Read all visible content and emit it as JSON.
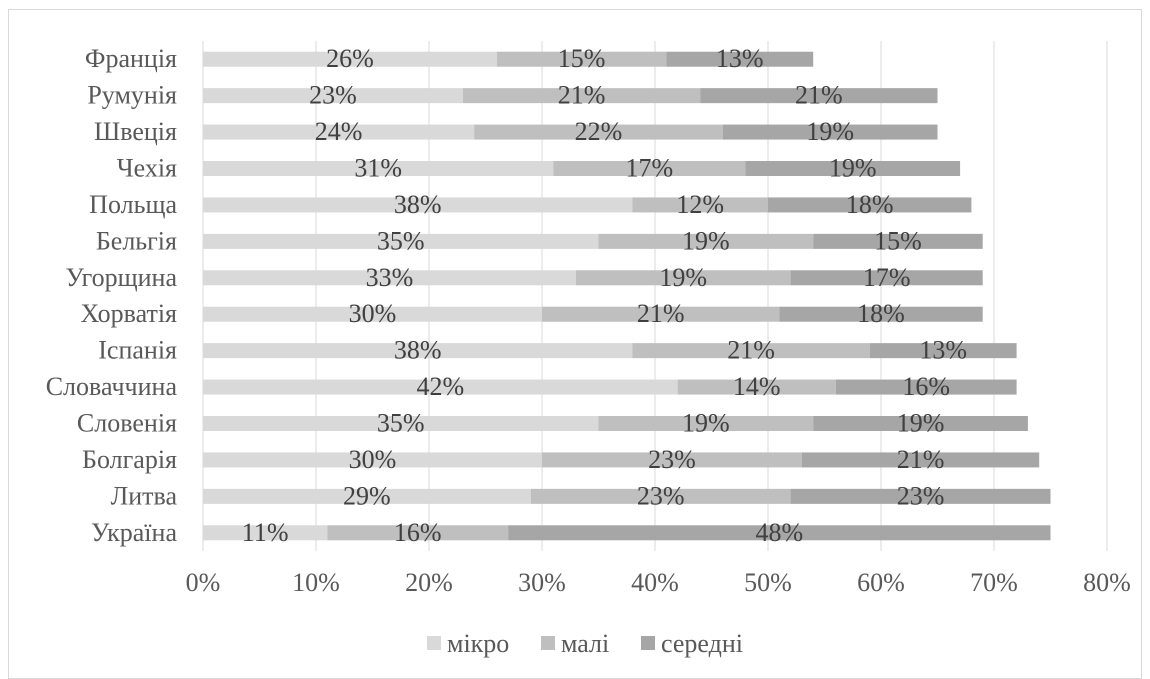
{
  "chart_data": {
    "type": "bar",
    "orientation": "horizontal",
    "stacked": true,
    "categories": [
      "Франція",
      "Румунія",
      "Швеція",
      "Чехія",
      "Польща",
      "Бельгія",
      "Угорщина",
      "Хорватія",
      "Іспанія",
      "Словаччина",
      "Словенія",
      "Болгарія",
      "Литва",
      "Україна"
    ],
    "series": [
      {
        "name": "мікро",
        "color": "#d9d9d9",
        "values": [
          26,
          23,
          24,
          31,
          38,
          35,
          33,
          30,
          38,
          42,
          35,
          30,
          29,
          11
        ]
      },
      {
        "name": "малі",
        "color": "#bfbfbf",
        "values": [
          15,
          21,
          22,
          17,
          12,
          19,
          19,
          21,
          21,
          14,
          19,
          23,
          23,
          16
        ]
      },
      {
        "name": "середні",
        "color": "#a6a6a6",
        "values": [
          13,
          21,
          19,
          19,
          18,
          15,
          17,
          18,
          13,
          16,
          19,
          21,
          23,
          48
        ]
      }
    ],
    "data_labels": [
      [
        "26%",
        "15%",
        "13%"
      ],
      [
        "23%",
        "21%",
        "21%"
      ],
      [
        "24%",
        "22%",
        "19%"
      ],
      [
        "31%",
        "17%",
        "19%"
      ],
      [
        "38%",
        "12%",
        "18%"
      ],
      [
        "35%",
        "19%",
        "15%"
      ],
      [
        "33%",
        "19%",
        "17%"
      ],
      [
        "30%",
        "21%",
        "18%"
      ],
      [
        "38%",
        "21%",
        "13%"
      ],
      [
        "42%",
        "14%",
        "16%"
      ],
      [
        "35%",
        "19%",
        "19%"
      ],
      [
        "30%",
        "23%",
        "21%"
      ],
      [
        "29%",
        "23%",
        "23%"
      ],
      [
        "11%",
        "16%",
        "48%"
      ]
    ],
    "x_ticks": [
      "0%",
      "10%",
      "20%",
      "30%",
      "40%",
      "50%",
      "60%",
      "70%",
      "80%"
    ],
    "xlim": [
      0,
      80
    ],
    "grid": true,
    "legend_position": "bottom",
    "title": "",
    "xlabel": "",
    "ylabel": ""
  }
}
